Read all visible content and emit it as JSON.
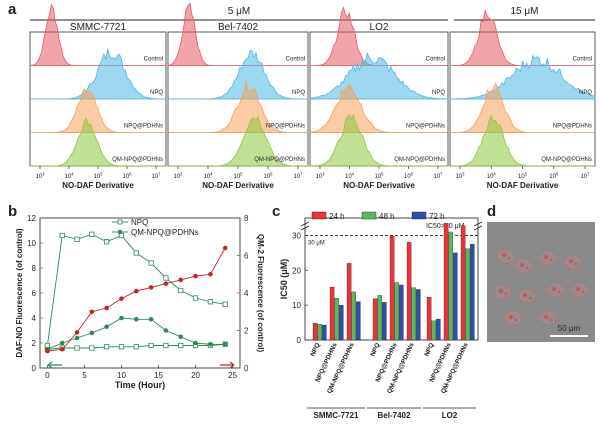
{
  "panel_a": {
    "label": "a",
    "group_labels": [
      "5 μM",
      "15 μM"
    ],
    "panel_titles": [
      "SMMC-7721",
      "Bel-7402",
      "LO2",
      ""
    ],
    "row_labels": [
      "Control",
      "NPQ",
      "NPQ@PDHNs",
      "QM-NPQ@PDHNs"
    ],
    "xlabel": "NO-DAF Derivative",
    "x_ticks": [
      "10^3",
      "10^4",
      "10^5",
      "10^6",
      "10^7"
    ],
    "colors": {
      "Control": "#e85a66",
      "NPQ": "#4db6e4",
      "NPQ@PDHNs": "#f5a05a",
      "QM-NPQ@PDHNs": "#8cc63f"
    }
  },
  "panel_b": {
    "label": "b",
    "legend": [
      "NPQ",
      "QM-NPQ@PDHNs"
    ],
    "xlabel": "Time (Hour)",
    "ylabel_left": "DAF-NO Fluorescence (of control)",
    "ylabel_right": "QM-2 Fluorescence (of control)"
  },
  "panel_c": {
    "label": "c",
    "ylabel": "IC50 (μM)",
    "legend": [
      "24 h",
      "48 h",
      "72 h"
    ],
    "threshold_label": "30 μM",
    "ic50_note": "IC50>30 μM",
    "groups": [
      "SMMC-7721",
      "Bel-7402",
      "LO2"
    ],
    "categories": [
      "NPQ",
      "NPQ@PDHNs",
      "QM-NPQ@PDHNs"
    ]
  },
  "panel_d": {
    "label": "d",
    "scale_bar": "50 μm"
  },
  "chart_data": [
    {
      "type": "line",
      "panel": "b",
      "xlim": [
        -1,
        26
      ],
      "x_ticks": [
        0,
        5,
        10,
        15,
        20,
        25
      ],
      "ylim_left": [
        0,
        12
      ],
      "y_ticks_left": [
        0,
        2,
        4,
        6,
        8,
        10,
        12
      ],
      "ylim_right": [
        0,
        8
      ],
      "y_ticks_right": [
        0,
        2,
        4,
        6,
        8
      ],
      "series": [
        {
          "name": "NPQ",
          "axis": "left",
          "marker": "open-square",
          "color": "#2e8b57",
          "x": [
            0,
            2,
            4,
            6,
            8,
            10,
            12,
            14,
            16,
            18,
            20,
            22,
            24
          ],
          "y": [
            1.5,
            1.6,
            1.6,
            1.6,
            1.7,
            1.7,
            1.7,
            1.8,
            1.8,
            1.8,
            1.8,
            1.8,
            1.9
          ]
        },
        {
          "name": "NPQ",
          "axis": "left",
          "marker": "open-square",
          "color": "#2e8b57",
          "x": [
            0,
            2,
            4,
            6,
            8,
            10,
            12,
            14,
            16,
            18,
            20,
            22,
            24
          ],
          "y": [
            1.8,
            10.6,
            10.3,
            10.7,
            10.1,
            10.6,
            9.2,
            8.4,
            7.2,
            6.2,
            5.6,
            5.3,
            5.1
          ]
        },
        {
          "name": "QM-NPQ@PDHNs",
          "axis": "left",
          "marker": "filled-circle",
          "color": "#2e8b57",
          "x": [
            0,
            2,
            4,
            6,
            8,
            10,
            12,
            14,
            16,
            18,
            20,
            22,
            24
          ],
          "y": [
            1.5,
            2.0,
            2.4,
            2.8,
            3.3,
            4.0,
            3.9,
            3.9,
            3.0,
            2.5,
            2.0,
            1.9,
            1.9
          ]
        },
        {
          "name": "QM-NPQ@PDHNs",
          "axis": "right",
          "marker": "filled-circle",
          "color": "#cc2222",
          "x": [
            0,
            2,
            4,
            6,
            8,
            10,
            12,
            14,
            16,
            18,
            20,
            22,
            24
          ],
          "y": [
            0.9,
            1.0,
            1.9,
            3.0,
            3.2,
            3.7,
            4.1,
            4.3,
            4.5,
            4.7,
            4.9,
            5.0,
            6.4
          ]
        }
      ]
    },
    {
      "type": "bar",
      "panel": "c",
      "ylim": [
        0,
        35
      ],
      "y_ticks": [
        0,
        10,
        20,
        30
      ],
      "threshold": 30,
      "categories": [
        "NPQ",
        "NPQ@PDHNs",
        "QM-NPQ@PDHNs",
        "NPQ",
        "NPQ@PDHNs",
        "QM-NPQ@PDHNs",
        "NPQ",
        "NPQ@PDHNs",
        "QM-NPQ@PDHNs"
      ],
      "series": [
        {
          "name": "24 h",
          "color": "#e8333a",
          "values": [
            4.8,
            15.2,
            22.0,
            11.8,
            29.8,
            28.0,
            12.3,
            33.5,
            32.8
          ]
        },
        {
          "name": "48 h",
          "color": "#5cb85c",
          "values": [
            4.5,
            12.0,
            13.8,
            12.8,
            16.5,
            15.0,
            5.5,
            31.0,
            26.2
          ]
        },
        {
          "name": "72 h",
          "color": "#2e4fa8",
          "values": [
            4.3,
            10.0,
            11.0,
            10.8,
            15.8,
            14.5,
            6.0,
            25.0,
            27.5
          ]
        }
      ]
    }
  ]
}
